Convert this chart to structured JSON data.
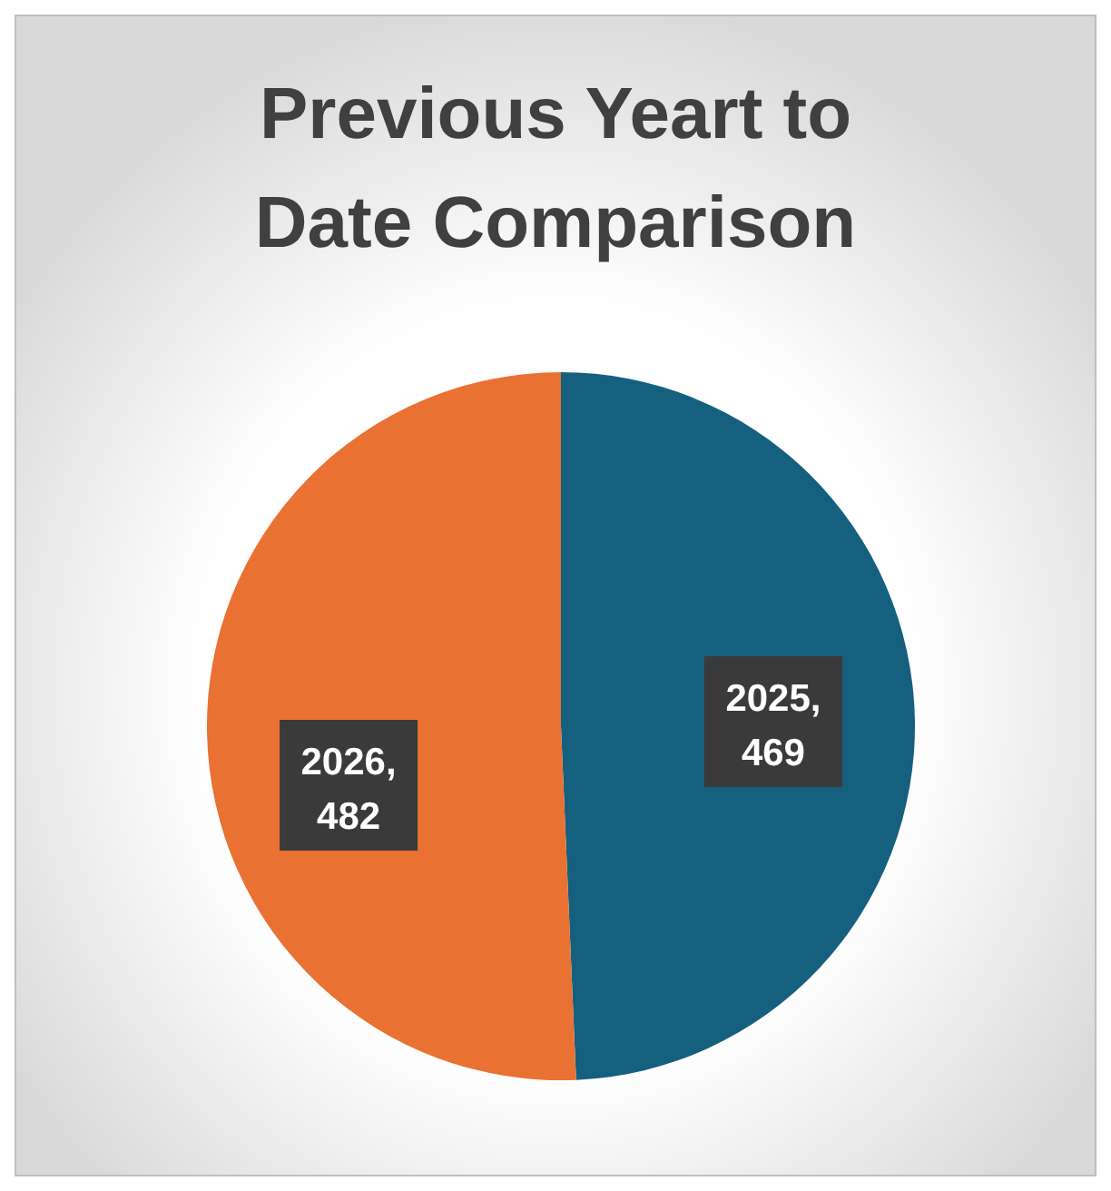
{
  "chart_data": {
    "type": "pie",
    "title": "Previous Yeart to Date Comparison",
    "values": [
      469,
      482
    ],
    "colors": [
      "#155f7f",
      "#e97132"
    ],
    "value_labels": [
      "2025, 469",
      "2026, 482"
    ]
  }
}
